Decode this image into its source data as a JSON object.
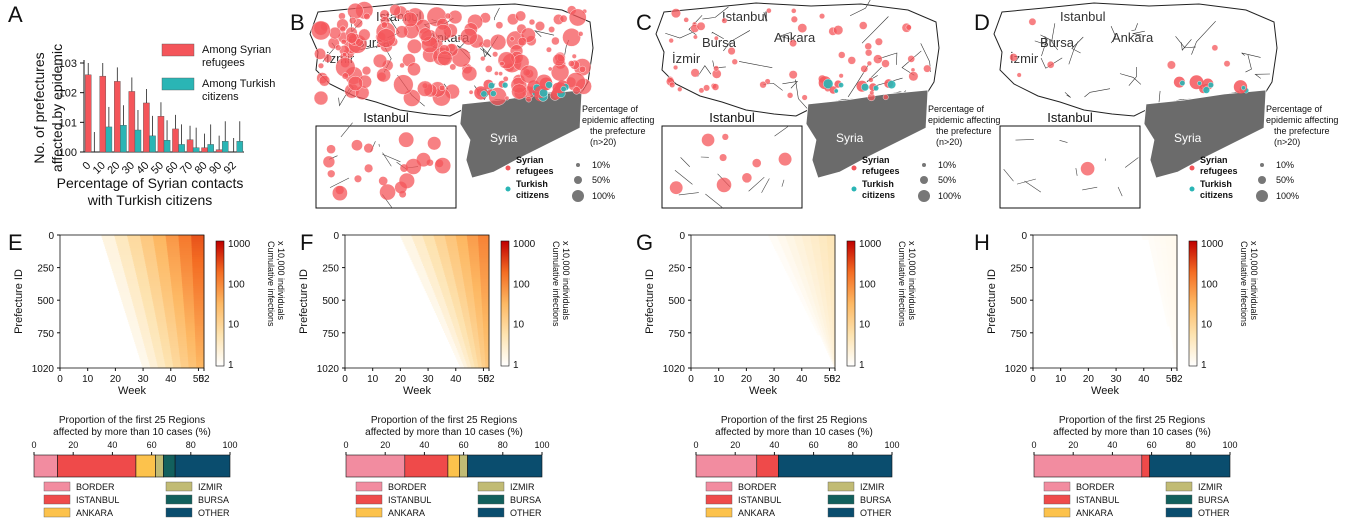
{
  "panel_letters": [
    "A",
    "B",
    "C",
    "D",
    "E",
    "F",
    "G",
    "H"
  ],
  "colors": {
    "syrian": "#f4555a",
    "turkish": "#2ab5b5",
    "syria_land": "#6b6b6b",
    "border": "#f28ca0",
    "istanbul": "#ef4a4a",
    "ankara": "#fcc24c",
    "izmir": "#c1bb74",
    "bursa": "#12605d",
    "other": "#0a4d6e"
  },
  "chart_data": [
    {
      "type": "bar",
      "panel": "A",
      "ylabel": "No. of prefectures affected by epidemic",
      "xlabel": "Percentage of Syrian contacts with Turkish citizens",
      "yscale": "log",
      "ylim": [
        1,
        1000
      ],
      "yticks": [
        "10^0",
        "10^1",
        "10^2",
        "10^3"
      ],
      "categories": [
        "0",
        "10",
        "20",
        "30",
        "40",
        "50",
        "60",
        "70",
        "80",
        "90",
        "92"
      ],
      "series": [
        {
          "name": "Among Syrian refugees",
          "values": [
            400,
            360,
            240,
            110,
            45,
            16,
            6,
            2.6,
            1.4,
            1.2,
            1.0
          ]
        },
        {
          "name": "Among Turkish citizens",
          "values": [
            1.0,
            7,
            8,
            5.5,
            3.5,
            2.5,
            1.8,
            1.4,
            1.8,
            2.3,
            2.3
          ]
        }
      ]
    },
    {
      "type": "heatmap",
      "panel": "E",
      "ylabel": "Prefecture ID",
      "xlabel": "Week",
      "xticks": [
        0,
        10,
        20,
        30,
        40,
        50,
        52
      ],
      "yticks": [
        0,
        250,
        500,
        750,
        1020
      ],
      "colorbar_label": "Cumulative infections x 10,000 individuals",
      "colorbar_ticks": [
        "1000",
        "100",
        "10",
        "1"
      ],
      "onset_week_top": 15,
      "onset_week_bottom": 30,
      "intensity": 0.9
    },
    {
      "type": "heatmap",
      "panel": "F",
      "ylabel": "Prefecture ID",
      "xlabel": "Week",
      "xticks": [
        0,
        10,
        20,
        30,
        40,
        50,
        52
      ],
      "yticks": [
        0,
        250,
        500,
        750,
        1020
      ],
      "colorbar_label": "Cumulative infections x 10,000 individuals",
      "colorbar_ticks": [
        "1000",
        "100",
        "10",
        "1"
      ],
      "onset_week_top": 20,
      "onset_week_bottom": 42,
      "intensity": 0.75
    },
    {
      "type": "heatmap",
      "panel": "G",
      "ylabel": "Prefecture ID",
      "xlabel": "Week",
      "xticks": [
        0,
        10,
        20,
        30,
        40,
        50,
        52
      ],
      "yticks": [
        0,
        250,
        500,
        750,
        1020
      ],
      "colorbar_label": "Cumulative infections x 10,000 individuals",
      "colorbar_ticks": [
        "1000",
        "100",
        "10",
        "1"
      ],
      "onset_week_top": 28,
      "onset_week_bottom": 52,
      "intensity": 0.25
    },
    {
      "type": "heatmap",
      "panel": "H",
      "ylabel": "Prefecture ID",
      "xlabel": "Week",
      "xticks": [
        0,
        10,
        20,
        30,
        40,
        50,
        52
      ],
      "yticks": [
        0,
        250,
        500,
        750,
        1020
      ],
      "colorbar_label": "Cumulative infections x 10,000 individuals",
      "colorbar_ticks": [
        "1000",
        "100",
        "10",
        "1"
      ],
      "onset_week_top": 35,
      "onset_week_bottom": 52,
      "intensity": 0.06
    },
    {
      "type": "bar",
      "panel": "E",
      "title": "Proportion of the first 25 Regions affected by more than 10 cases (%)",
      "xticks": [
        0,
        20,
        40,
        60,
        80,
        100
      ],
      "categories": [
        "BORDER",
        "ISTANBUL",
        "ANKARA",
        "IZMIR",
        "BURSA",
        "OTHER"
      ],
      "values": [
        12,
        40,
        10,
        4,
        6,
        28
      ]
    },
    {
      "type": "bar",
      "panel": "F",
      "title": "Proportion of the first 25 Regions affected by more than 10 cases (%)",
      "xticks": [
        0,
        20,
        40,
        60,
        80,
        100
      ],
      "categories": [
        "BORDER",
        "ISTANBUL",
        "ANKARA",
        "IZMIR",
        "BURSA",
        "OTHER"
      ],
      "values": [
        30,
        22,
        6,
        4,
        0,
        38
      ]
    },
    {
      "type": "bar",
      "panel": "G",
      "title": "Proportion of the first 25 Regions affected by more than 10 cases (%)",
      "xticks": [
        0,
        20,
        40,
        60,
        80,
        100
      ],
      "categories": [
        "BORDER",
        "ISTANBUL",
        "ANKARA",
        "IZMIR",
        "BURSA",
        "OTHER"
      ],
      "values": [
        31,
        11,
        0,
        0,
        0,
        58
      ]
    },
    {
      "type": "bar",
      "panel": "H",
      "title": "Proportion of the first 25 Regions affected by more than 10 cases (%)",
      "xticks": [
        0,
        20,
        40,
        60,
        80,
        100
      ],
      "categories": [
        "BORDER",
        "ISTANBUL",
        "ANKARA",
        "IZMIR",
        "BURSA",
        "OTHER"
      ],
      "values": [
        55,
        4,
        0,
        0,
        0,
        41
      ]
    }
  ],
  "maps": {
    "city_labels": [
      "Istanbul",
      "Bursa",
      "Ankara",
      "İzmir"
    ],
    "syria_label": "Syria",
    "inset_title": "Istanbul",
    "legend_title": "Percentage of epidemic affecting the prefecture (n>20)",
    "legend_syrian": "Syrian refugees",
    "legend_turkish": "Turkish citizens",
    "size_labels": [
      "10%",
      "50%",
      "100%"
    ]
  }
}
